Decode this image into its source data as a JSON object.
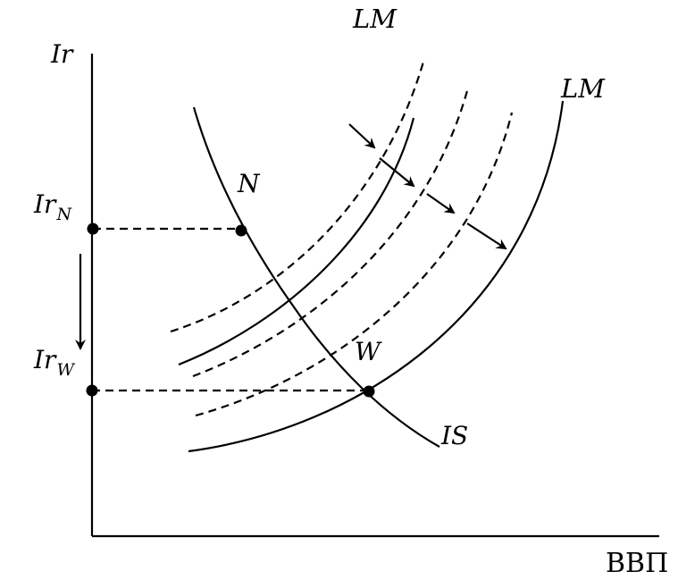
{
  "labels": {
    "y_axis": "Ir",
    "x_axis": "ВВП",
    "ir_n_main": "Ir",
    "ir_n_sub": "N",
    "ir_w_main": "Ir",
    "ir_w_sub": "W",
    "point_n": "N",
    "point_w": "W",
    "lm_initial": "LM",
    "lm_final": "LM",
    "is_curve": "IS"
  }
}
